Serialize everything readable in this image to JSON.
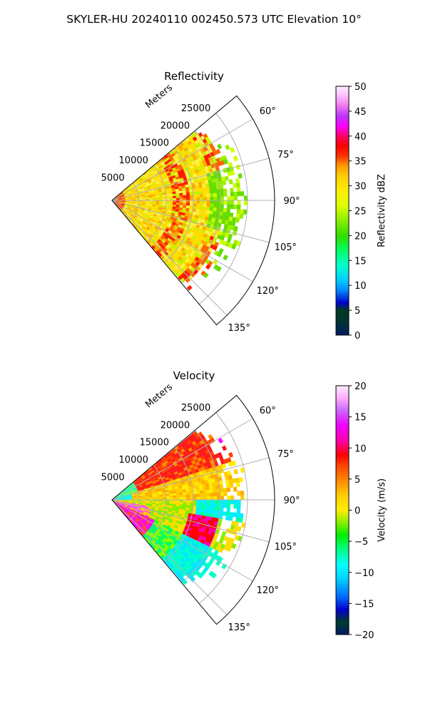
{
  "suptitle": "SKYLER-HU  20240110  002450.573 UTC Elevation 10°",
  "chart_data": [
    {
      "type": "polar-sector",
      "title": "Reflectivity",
      "range_label": "Meters",
      "range_ticks": [
        "5000",
        "10000",
        "15000",
        "20000",
        "25000"
      ],
      "range_values": [
        5000,
        10000,
        15000,
        20000,
        25000
      ],
      "rmax": 30000,
      "azimuth_ticks": [
        "60°",
        "75°",
        "90°",
        "105°",
        "120°",
        "135°"
      ],
      "azimuth_values": [
        60,
        75,
        90,
        105,
        120,
        135
      ],
      "sector": [
        50,
        140
      ],
      "grid": true,
      "colorbar": {
        "label": "Reflectivity dBZ",
        "min": 0,
        "max": 50,
        "ticks": [
          "0",
          "5",
          "10",
          "15",
          "20",
          "25",
          "30",
          "35",
          "40",
          "45",
          "50"
        ],
        "tick_values": [
          0,
          5,
          10,
          15,
          20,
          25,
          30,
          35,
          40,
          45,
          50
        ]
      },
      "echo_extent_m": 25000,
      "colors": {
        "dominant": "#ffdd00",
        "outer": "#66dd00",
        "inner_core": "#ff3300",
        "bands": "#ff2200"
      }
    },
    {
      "type": "polar-sector",
      "title": "Velocity",
      "range_label": "Meters",
      "range_ticks": [
        "5000",
        "10000",
        "15000",
        "20000",
        "25000"
      ],
      "range_values": [
        5000,
        10000,
        15000,
        20000,
        25000
      ],
      "rmax": 30000,
      "azimuth_ticks": [
        "60°",
        "75°",
        "90°",
        "105°",
        "120°",
        "135°"
      ],
      "azimuth_values": [
        60,
        75,
        90,
        105,
        120,
        135
      ],
      "sector": [
        50,
        140
      ],
      "grid": true,
      "colorbar": {
        "label": "Velocity (m/s)",
        "min": -20,
        "max": 20,
        "ticks": [
          "−20",
          "−15",
          "−10",
          "−5",
          "0",
          "5",
          "10",
          "15",
          "20"
        ],
        "tick_values": [
          -20,
          -15,
          -10,
          -5,
          0,
          5,
          10,
          15,
          20
        ]
      },
      "echo_extent_m": 25000,
      "colors": {
        "outbound": "#ff1a1a",
        "zero": "#ffdd00",
        "inbound": "#00e5ff",
        "strong_out": "#ff00ff"
      }
    }
  ]
}
